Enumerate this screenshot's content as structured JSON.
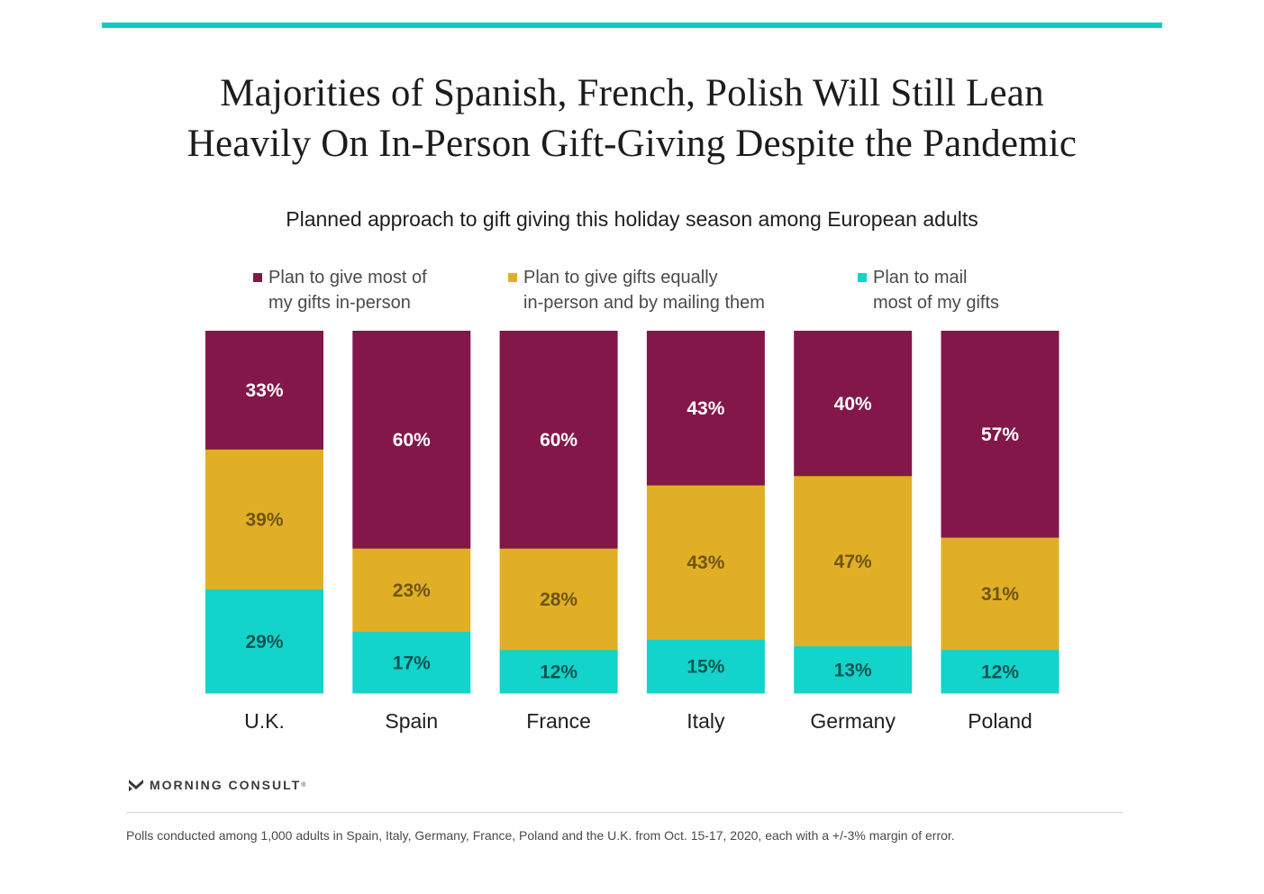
{
  "header": {
    "title_line1": "Majorities of Spanish, French, Polish Will Still Lean",
    "title_line2": "Heavily On In-Person Gift-Giving Despite the Pandemic",
    "subtitle": "Planned approach to gift giving this holiday season among European adults"
  },
  "legend": [
    {
      "line1": "Plan to give most of",
      "line2": "my gifts in-person",
      "color": "#83174a"
    },
    {
      "line1": "Plan to give gifts equally",
      "line2": "in-person and by mailing them",
      "color": "#e0af25"
    },
    {
      "line1": "Plan to mail",
      "line2": "most of my gifts",
      "color": "#12d4cb"
    }
  ],
  "chart_data": {
    "type": "bar",
    "stacked": true,
    "title": "Majorities of Spanish, French, Polish Will Still Lean Heavily On In-Person Gift-Giving Despite the Pandemic",
    "subtitle": "Planned approach to gift giving this holiday season among European adults",
    "categories": [
      "U.K.",
      "Spain",
      "France",
      "Italy",
      "Germany",
      "Poland"
    ],
    "series": [
      {
        "name": "Plan to mail most of my gifts",
        "color": "#12d4cb",
        "label_color": "#0c5551",
        "values": [
          29,
          17,
          12,
          15,
          13,
          12
        ]
      },
      {
        "name": "Plan to give gifts equally in-person and by mailing them",
        "color": "#e0af25",
        "label_color": "#6e5510",
        "values": [
          39,
          23,
          28,
          43,
          47,
          31
        ]
      },
      {
        "name": "Plan to give most of my gifts in-person",
        "color": "#83174a",
        "label_color": "#ffffff",
        "values": [
          33,
          60,
          60,
          43,
          40,
          57
        ]
      }
    ],
    "unit": "%",
    "xlabel": "",
    "ylabel": "",
    "grid": false
  },
  "footer": {
    "brand": "MORNING CONSULT",
    "trademark": "®",
    "note": "Polls conducted among 1,000 adults in Spain, Italy, Germany, France, Poland and the U.K. from Oct. 15-17, 2020, each with a +/-3% margin of error."
  }
}
